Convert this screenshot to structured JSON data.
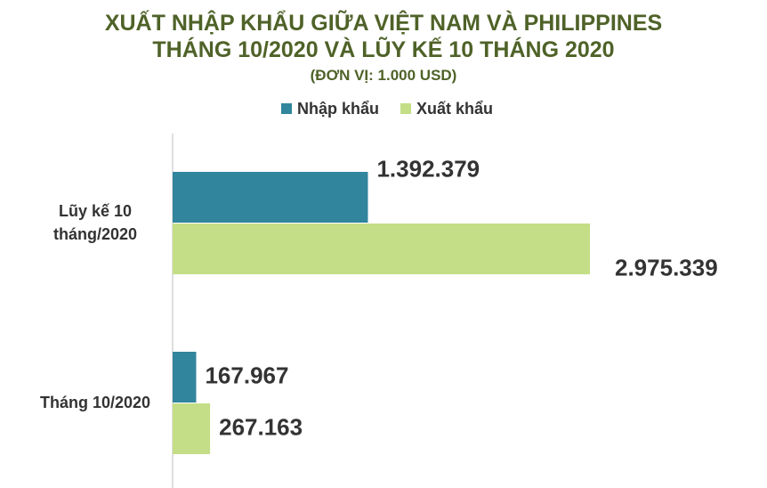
{
  "chart_data": {
    "type": "hbar",
    "title": [
      "XUẤT NHẬP KHẨU GIỮA VIỆT NAM VÀ PHILIPPINES",
      "THÁNG 10/2020 VÀ LŨY KẾ 10 THÁNG 2020"
    ],
    "subtitle": "(ĐƠN VỊ: 1.000 USD)",
    "categories": [
      "Lũy kế 10 tháng/2020",
      "Tháng 10/2020"
    ],
    "series": [
      {
        "name": "Nhập khẩu",
        "color": "#31859c",
        "values": [
          1392379,
          167967
        ],
        "value_labels": [
          "1.392.379",
          "167.967"
        ]
      },
      {
        "name": "Xuất khẩu",
        "color": "#c3de86",
        "values": [
          2975339,
          267163
        ],
        "value_labels": [
          "2.975.339",
          "267.163"
        ]
      }
    ],
    "legend": "top"
  }
}
